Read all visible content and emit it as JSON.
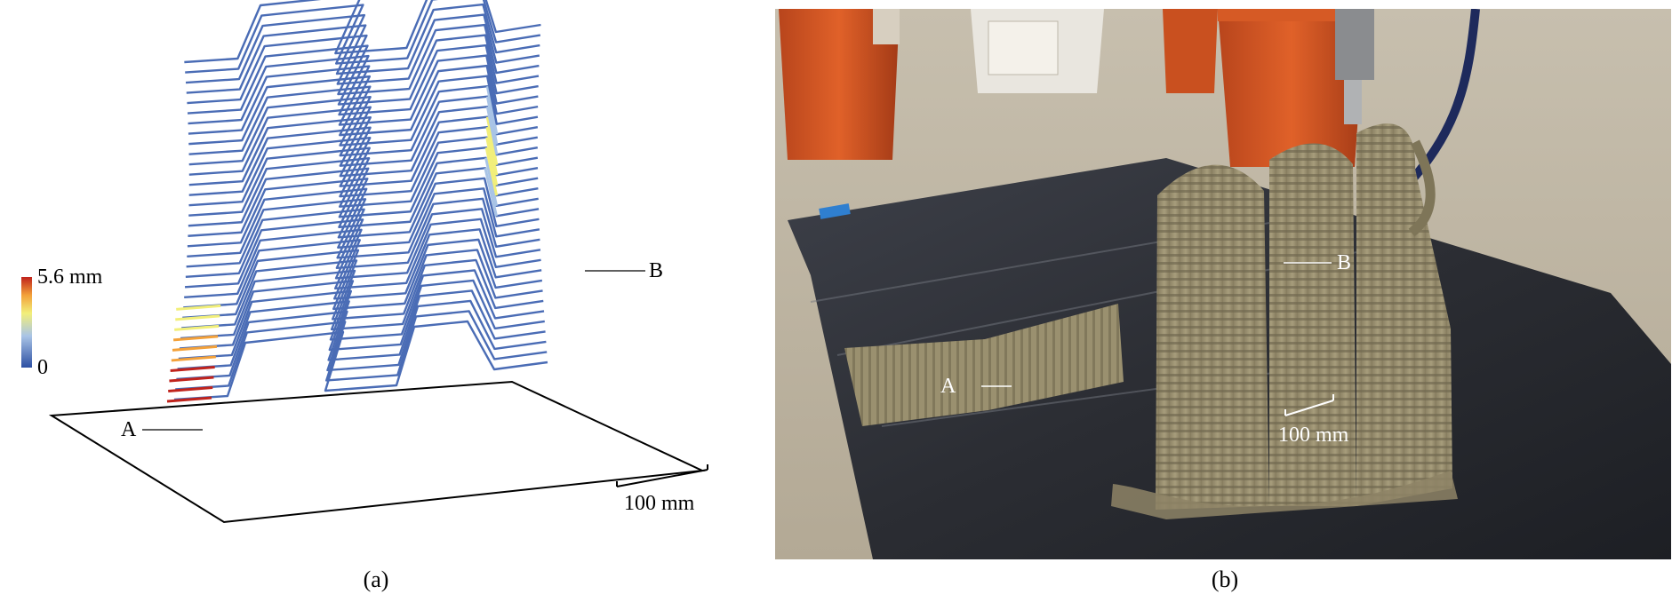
{
  "panel_a": {
    "colorbar": {
      "max_label": "5.6 mm",
      "min_label": "0",
      "colors": [
        "#2c4fa3",
        "#a9c4e6",
        "#f2ef7a",
        "#f3a13a",
        "#c0231c"
      ]
    },
    "callout_a": "A",
    "callout_b": "B",
    "scale_label": "100 mm",
    "caption": "(a)",
    "line_color": "#4a6cb5"
  },
  "panel_b": {
    "callout_a": "A",
    "callout_b": "B",
    "scale_label": "100 mm",
    "caption": "(b)"
  }
}
